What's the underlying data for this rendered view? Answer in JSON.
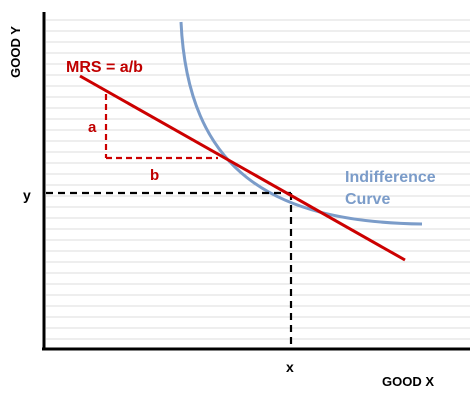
{
  "axes": {
    "y_title": "GOOD Y",
    "x_title": "GOOD X",
    "y_point_label": "y",
    "x_point_label": "x"
  },
  "tangent": {
    "label": "MRS = a/b",
    "rise_label": "a",
    "run_label": "b"
  },
  "curve": {
    "label_line1": "Indifference",
    "label_line2": "Curve"
  },
  "colors": {
    "tangent": "#cc0000",
    "curve": "#7b9cc9",
    "grid": "#dcdcdc",
    "axis": "#000000"
  }
}
